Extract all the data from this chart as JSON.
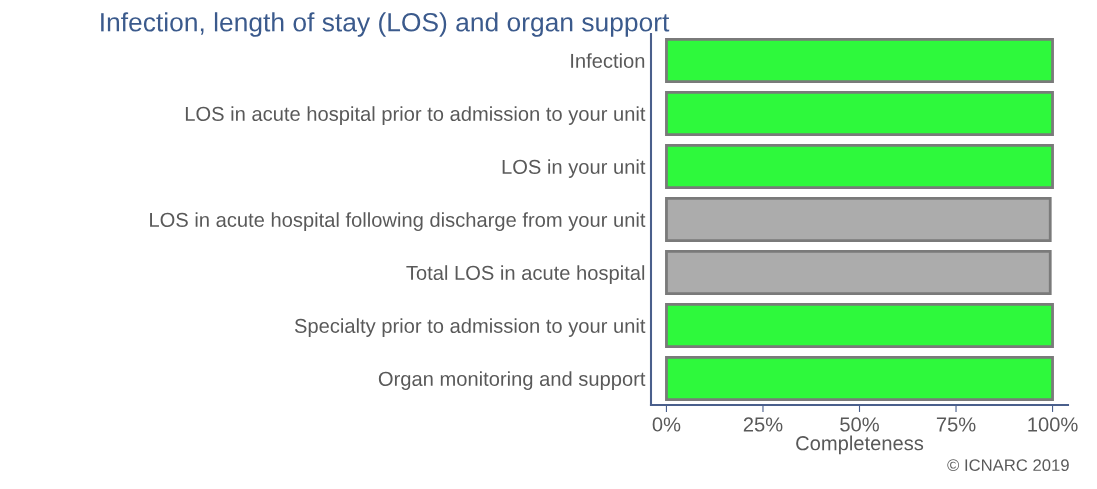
{
  "chart_data": {
    "type": "bar",
    "orientation": "horizontal",
    "title": "Infection, length of stay (LOS) and organ support",
    "categories": [
      "Infection",
      "LOS in acute hospital prior to admission to your unit",
      "LOS in your unit",
      "LOS in acute hospital following discharge from your unit",
      "Total LOS in acute hospital",
      "Specialty prior to admission to your unit",
      "Organ monitoring and support"
    ],
    "values": [
      100,
      100,
      100,
      99.4,
      99.4,
      100,
      100
    ],
    "colors": [
      "#2ef93c",
      "#2ef93c",
      "#2ef93c",
      "#acacac",
      "#acacac",
      "#2ef93c",
      "#2ef93c"
    ],
    "xlabel": "Completeness",
    "xlim": [
      -4,
      104
    ],
    "xticks": [
      {
        "value": 0,
        "label": "0%"
      },
      {
        "value": 25,
        "label": "25%"
      },
      {
        "value": 50,
        "label": "50%"
      },
      {
        "value": 75,
        "label": "75%"
      },
      {
        "value": 100,
        "label": "100%"
      }
    ],
    "grid": false,
    "annotations": [
      "© ICNARC 2019"
    ]
  }
}
